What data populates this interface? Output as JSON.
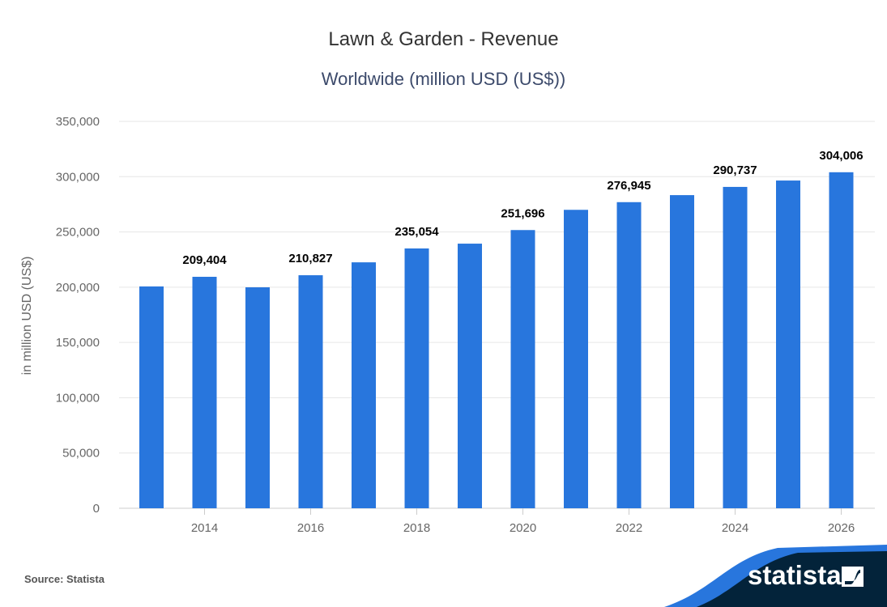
{
  "chart_data": {
    "type": "bar",
    "title": "Lawn & Garden - Revenue",
    "subtitle": "Worldwide (million USD (US$))",
    "xlabel": "",
    "ylabel": "in million USD (US$)",
    "ylim": [
      0,
      350000
    ],
    "yticks": [
      "0",
      "50,000",
      "100,000",
      "150,000",
      "200,000",
      "250,000",
      "300,000",
      "350,000"
    ],
    "ytick_values": [
      0,
      50000,
      100000,
      150000,
      200000,
      250000,
      300000,
      350000
    ],
    "categories": [
      2013,
      2014,
      2015,
      2016,
      2017,
      2018,
      2019,
      2020,
      2021,
      2022,
      2023,
      2024,
      2025,
      2026
    ],
    "xtick_labels": [
      "2014",
      "2016",
      "2018",
      "2020",
      "2022",
      "2024",
      "2026"
    ],
    "values": [
      200700,
      209404,
      199900,
      210827,
      222500,
      235054,
      239400,
      251696,
      270000,
      276945,
      283300,
      290737,
      296500,
      304006
    ],
    "data_labels": [
      "",
      "209,404",
      "",
      "210,827",
      "",
      "235,054",
      "",
      "251,696",
      "",
      "276,945",
      "",
      "290,737",
      "",
      "304,006"
    ],
    "grid": true,
    "bar_color": "#2876dd"
  },
  "footer": {
    "source": "Source: Statista",
    "brand": "statista"
  },
  "colors": {
    "footer_bg": "#03233a",
    "footer_wave": "#2876dd"
  }
}
